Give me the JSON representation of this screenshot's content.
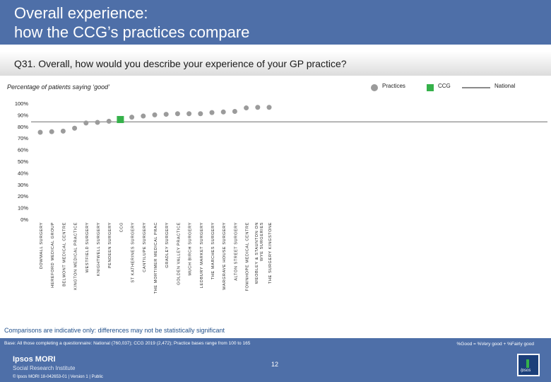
{
  "header": {
    "title_line1": "Overall experience:",
    "title_line2": "how the CCG’s practices compare"
  },
  "question": "Q31. Overall, how would you describe your experience of your GP practice?",
  "subtitle": "Percentage of patients saying ‘good’",
  "legend": {
    "practices": "Practices",
    "ccg": "CCG",
    "national": "National"
  },
  "colors": {
    "header_bg": "#4e6fa8",
    "practice_dot": "#9b9b9b",
    "ccg_bar": "#35b14a",
    "national_line": "#8a8a8a"
  },
  "chart_data": {
    "type": "scatter",
    "yticks": [
      "100%",
      "90%",
      "80%",
      "70%",
      "60%",
      "50%",
      "40%",
      "30%",
      "20%",
      "10%",
      "0%"
    ],
    "ylim": [
      0,
      100
    ],
    "national_value": 84,
    "points": [
      {
        "label": "DOWMALL SURGERY",
        "value": 75,
        "kind": "practice"
      },
      {
        "label": "HEREFORD MEDICAL GROUP",
        "value": 75.5,
        "kind": "practice"
      },
      {
        "label": "BELMONT MEDICAL CENTRE",
        "value": 76,
        "kind": "practice"
      },
      {
        "label": "KINGTON MEDICAL PRACTICE",
        "value": 78.5,
        "kind": "practice"
      },
      {
        "label": "WESTFIELD SURGERY",
        "value": 83,
        "kind": "practice"
      },
      {
        "label": "KNIGHTWELL SURGERY",
        "value": 83.5,
        "kind": "practice"
      },
      {
        "label": "PENDEEN SURGERY",
        "value": 84.5,
        "kind": "practice"
      },
      {
        "label": "CCG",
        "value": 86,
        "kind": "ccg"
      },
      {
        "label": "ST KATHERINES SURGERY",
        "value": 88,
        "kind": "practice"
      },
      {
        "label": "CANTILUPE SURGERY",
        "value": 89,
        "kind": "practice"
      },
      {
        "label": "THE MORTIMER MEDICAL PRAC",
        "value": 90,
        "kind": "practice"
      },
      {
        "label": "GRADLEY SURGERY",
        "value": 90.5,
        "kind": "practice"
      },
      {
        "label": "GOLDEN VALLEY PRACTICE",
        "value": 91,
        "kind": "practice"
      },
      {
        "label": "MUCH BIRCH SURGERY",
        "value": 91,
        "kind": "practice"
      },
      {
        "label": "LEDBURY MARKET SURGERY",
        "value": 91,
        "kind": "practice"
      },
      {
        "label": "THE MARCHES SURGERY",
        "value": 92,
        "kind": "practice"
      },
      {
        "label": "WARGRAVE HOUSE SURGERY",
        "value": 92.5,
        "kind": "practice"
      },
      {
        "label": "ALTON STREET SURGERY",
        "value": 93,
        "kind": "practice"
      },
      {
        "label": "FOWNHOPE MEDICAL CENTRE",
        "value": 96,
        "kind": "practice"
      },
      {
        "label": "WEOBLEY & STAUNTON ON WYE SURGERIES",
        "value": 96.5,
        "kind": "practice"
      },
      {
        "label": "THE SURGERY KINGSTONE",
        "value": 96.5,
        "kind": "practice"
      }
    ]
  },
  "comparisons_note": "Comparisons are indicative only: differences may not be statistically significant",
  "base": "Base: All those completing a questionnaire: National (760,037); CCG 2019 (2,472); Practice bases range from 100 to 165",
  "definition": "%Good = %Very good + %Fairly good",
  "footer": {
    "logo_line1": "Ipsos MORI",
    "logo_line2": "Social Research Institute",
    "copyright": "© Ipsos MORI     18-042653-01 | Version 1 | Public",
    "page_number": "12",
    "brand_mark": "Ipsos"
  }
}
